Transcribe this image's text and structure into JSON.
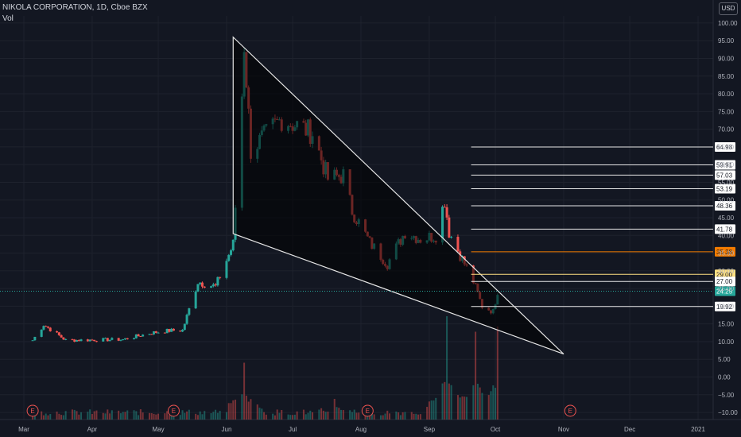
{
  "header": {
    "symbol": "NIKOLA CORPORATION, 1D, Cboe BZX",
    "volume_label": "Vol"
  },
  "currency": "USD",
  "colors": {
    "background": "#131722",
    "up": "#26a69a",
    "down": "#ef5350",
    "grid": "#1e222d",
    "text": "#b2b5be"
  },
  "chart_data": {
    "type": "candlestick",
    "title": "NIKOLA CORPORATION, 1D, Cboe BZX",
    "ylim": [
      -12,
      102
    ],
    "y_ticks": [
      100,
      95,
      90,
      85,
      80,
      75,
      70,
      65,
      60,
      55,
      50,
      45,
      40,
      35,
      30,
      25,
      20,
      15,
      10,
      5,
      0,
      -5,
      -10
    ],
    "y_tick_labels": [
      "100.00",
      "95.00",
      "90.00",
      "85.00",
      "80.00",
      "75.00",
      "70.00",
      "65.00",
      "60.00",
      "55.00",
      "50.00",
      "45.00",
      "40.00",
      "35.00",
      "30.00",
      "25.00",
      "20.00",
      "15.00",
      "10.00",
      "5.00",
      "0.00",
      "−5.00",
      "−10.00"
    ],
    "x_ticks": [
      {
        "date": "2020-03-01",
        "label": "Mar"
      },
      {
        "date": "2020-04-01",
        "label": "Apr"
      },
      {
        "date": "2020-05-01",
        "label": "May"
      },
      {
        "date": "2020-06-01",
        "label": "Jun"
      },
      {
        "date": "2020-07-01",
        "label": "Jul"
      },
      {
        "date": "2020-08-01",
        "label": "Aug"
      },
      {
        "date": "2020-09-01",
        "label": "Sep"
      },
      {
        "date": "2020-10-01",
        "label": "Oct"
      },
      {
        "date": "2020-11-01",
        "label": "Nov"
      },
      {
        "date": "2020-12-01",
        "label": "Dec"
      },
      {
        "date": "2021-01-01",
        "label": "2021"
      }
    ],
    "key_closes": [
      {
        "date": "2020-03-05",
        "close": 10.4
      },
      {
        "date": "2020-03-10",
        "close": 14.8
      },
      {
        "date": "2020-03-20",
        "close": 10.4
      },
      {
        "date": "2020-04-15",
        "close": 10.6
      },
      {
        "date": "2020-04-28",
        "close": 12.5
      },
      {
        "date": "2020-05-06",
        "close": 13.1
      },
      {
        "date": "2020-05-12",
        "close": 13.2
      },
      {
        "date": "2020-05-19",
        "close": 27.0
      },
      {
        "date": "2020-05-27",
        "close": 25.5
      },
      {
        "date": "2020-06-04",
        "close": 37.5
      },
      {
        "date": "2020-06-08",
        "close": 79.7
      },
      {
        "date": "2020-06-09",
        "close": 94.0
      },
      {
        "date": "2020-06-12",
        "close": 64.0
      },
      {
        "date": "2020-06-26",
        "close": 73.0
      },
      {
        "date": "2020-07-10",
        "close": 69.0
      },
      {
        "date": "2020-07-17",
        "close": 56.0
      },
      {
        "date": "2020-07-24",
        "close": 57.0
      },
      {
        "date": "2020-07-28",
        "close": 47.0
      },
      {
        "date": "2020-08-05",
        "close": 38.0
      },
      {
        "date": "2020-08-13",
        "close": 32.0
      },
      {
        "date": "2020-08-21",
        "close": 41.0
      },
      {
        "date": "2020-08-28",
        "close": 39.0
      },
      {
        "date": "2020-09-04",
        "close": 40.0
      },
      {
        "date": "2020-09-08",
        "close": 50.0
      },
      {
        "date": "2020-09-10",
        "close": 41.0
      },
      {
        "date": "2020-09-15",
        "close": 34.5
      },
      {
        "date": "2020-09-21",
        "close": 27.0
      },
      {
        "date": "2020-09-25",
        "close": 20.0
      },
      {
        "date": "2020-09-30",
        "close": 18.5
      },
      {
        "date": "2020-10-02",
        "close": 24.25
      }
    ],
    "volume_series": [
      {
        "date": "2020-06-09",
        "volume": 0.55
      },
      {
        "date": "2020-07-20",
        "volume": 0.2
      },
      {
        "date": "2020-09-09",
        "volume": 1.0
      },
      {
        "date": "2020-09-22",
        "volume": 0.85
      },
      {
        "date": "2020-10-02",
        "volume": 0.9
      }
    ],
    "annotations": {
      "wedge": [
        {
          "date": "2020-06-04",
          "value": 96.0
        },
        {
          "date": "2020-06-04",
          "value": 40.5
        },
        {
          "date": "2020-11-01",
          "value": 6.5
        }
      ],
      "horizontal_levels": [
        {
          "value": 64.98,
          "label": "64.98"
        },
        {
          "value": 59.91,
          "label": "59.91"
        },
        {
          "value": 57.03,
          "label": "57.03"
        },
        {
          "value": 53.19,
          "label": "53.19"
        },
        {
          "value": 48.36,
          "label": "48.36"
        },
        {
          "value": 41.78,
          "label": "41.78"
        },
        {
          "value": 35.38,
          "label": "35.38",
          "highlight": "orange"
        },
        {
          "value": 29.0,
          "label": "29.00",
          "highlight": "yellow"
        },
        {
          "value": 27.0,
          "label": "27.00"
        },
        {
          "value": 19.92,
          "label": "19.92"
        }
      ],
      "last_price": {
        "value": 24.25,
        "label": "24.25"
      },
      "earnings_markers": [
        {
          "date": "2020-03-05",
          "label": "E"
        },
        {
          "date": "2020-05-08",
          "label": "E"
        },
        {
          "date": "2020-08-04",
          "label": "E"
        },
        {
          "date": "2020-11-04",
          "label": "E"
        }
      ]
    }
  }
}
